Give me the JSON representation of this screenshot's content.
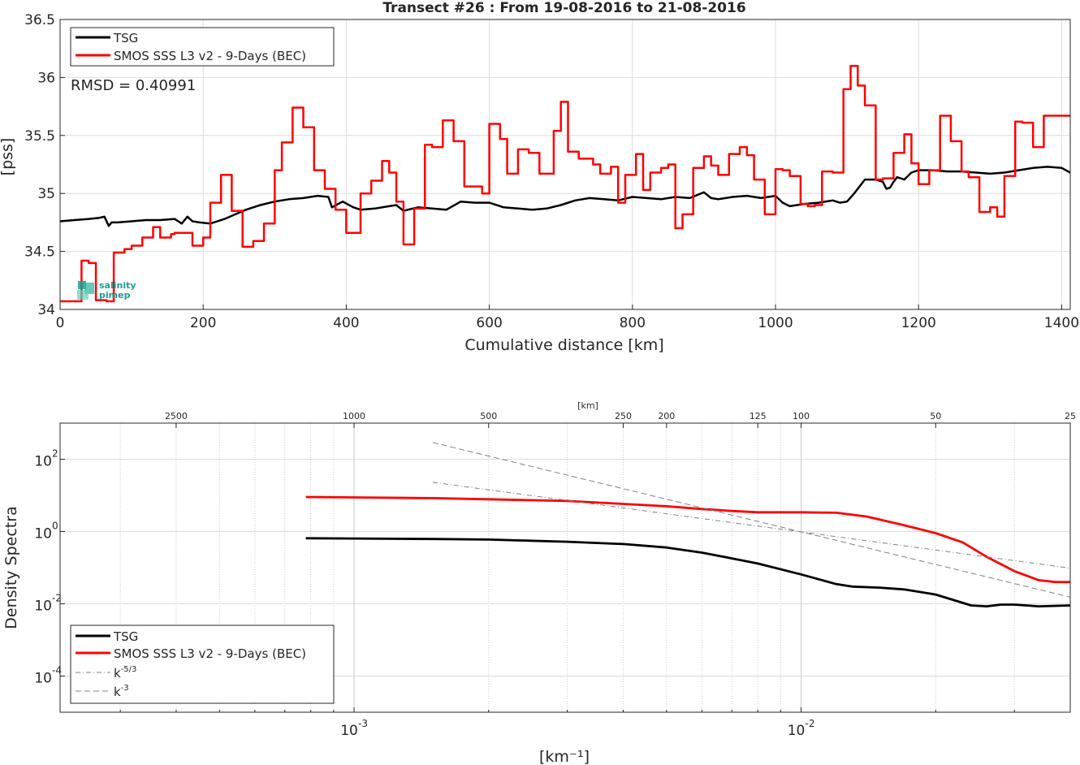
{
  "figure": {
    "title": "Transect #26 : From 19-08-2016 to 21-08-2016"
  },
  "colors": {
    "tsg": "#000000",
    "smos": "#ff0000",
    "ref": "#808080",
    "grid": "#d9d9d9",
    "logo": "#1a9e8f"
  },
  "logo": {
    "line1": "salinity",
    "line2": "pimep"
  },
  "chart_data": [
    {
      "type": "line",
      "title": "Transect #26 : From 19-08-2016 to 21-08-2016",
      "xlabel": "Cumulative distance [km]",
      "ylabel": "[pss]",
      "xlim": [
        0,
        1412
      ],
      "ylim": [
        34,
        36.5
      ],
      "xticks": [
        0,
        200,
        400,
        600,
        800,
        1000,
        1200,
        1400
      ],
      "yticks": [
        34,
        34.5,
        35,
        35.5,
        36,
        36.5
      ],
      "ytick_labels": [
        "34",
        "34.5",
        "35",
        "35.5",
        "36",
        "36.5"
      ],
      "grid": true,
      "legend_position": "top-left",
      "annotation": "RMSD = 0.40991",
      "series": [
        {
          "name": "TSG",
          "color": "#000000",
          "x": [
            0,
            20,
            40,
            55,
            62,
            68,
            72,
            80,
            100,
            120,
            140,
            160,
            170,
            178,
            185,
            195,
            210,
            230,
            245,
            260,
            280,
            300,
            320,
            340,
            360,
            375,
            380,
            395,
            410,
            420,
            440,
            460,
            470,
            480,
            500,
            520,
            540,
            560,
            580,
            600,
            620,
            640,
            660,
            680,
            700,
            720,
            740,
            760,
            780,
            800,
            820,
            840,
            860,
            880,
            900,
            910,
            920,
            940,
            960,
            980,
            1000,
            1010,
            1020,
            1040,
            1060,
            1080,
            1090,
            1100,
            1110,
            1125,
            1140,
            1150,
            1155,
            1160,
            1165,
            1170,
            1180,
            1190,
            1200,
            1220,
            1240,
            1260,
            1280,
            1300,
            1320,
            1340,
            1360,
            1380,
            1400,
            1412
          ],
          "y": [
            34.76,
            34.77,
            34.78,
            34.79,
            34.8,
            34.72,
            34.75,
            34.75,
            34.76,
            34.77,
            34.77,
            34.78,
            34.74,
            34.8,
            34.76,
            34.75,
            34.74,
            34.78,
            34.82,
            34.86,
            34.9,
            34.93,
            34.95,
            34.96,
            34.98,
            34.97,
            34.88,
            34.93,
            34.88,
            34.86,
            34.87,
            34.89,
            34.9,
            34.85,
            34.88,
            34.87,
            34.86,
            34.93,
            34.92,
            34.92,
            34.88,
            34.87,
            34.86,
            34.87,
            34.9,
            34.94,
            34.96,
            34.95,
            34.94,
            34.97,
            34.96,
            34.95,
            34.97,
            34.96,
            35.01,
            34.96,
            34.95,
            34.97,
            34.98,
            34.96,
            34.98,
            34.92,
            34.89,
            34.91,
            34.92,
            34.94,
            34.92,
            34.93,
            35.0,
            35.12,
            35.12,
            35.1,
            35.04,
            35.05,
            35.1,
            35.14,
            35.12,
            35.18,
            35.2,
            35.2,
            35.19,
            35.19,
            35.18,
            35.17,
            35.18,
            35.2,
            35.22,
            35.23,
            35.22,
            35.18
          ]
        },
        {
          "name": "SMOS SSS L3 v2 - 9-Days (BEC)",
          "color": "#ff0000",
          "step": true,
          "x": [
            0,
            10,
            20,
            30,
            40,
            50,
            58,
            65,
            75,
            90,
            100,
            115,
            130,
            140,
            155,
            160,
            175,
            185,
            200,
            210,
            225,
            240,
            255,
            270,
            285,
            300,
            310,
            325,
            340,
            355,
            370,
            385,
            400,
            410,
            420,
            435,
            450,
            460,
            470,
            480,
            495,
            510,
            520,
            535,
            550,
            565,
            580,
            590,
            600,
            615,
            625,
            640,
            655,
            670,
            690,
            700,
            710,
            725,
            735,
            745,
            755,
            770,
            780,
            790,
            805,
            815,
            825,
            840,
            850,
            860,
            870,
            885,
            900,
            910,
            920,
            935,
            950,
            960,
            970,
            985,
            1000,
            1010,
            1020,
            1035,
            1045,
            1055,
            1065,
            1080,
            1095,
            1105,
            1115,
            1125,
            1140,
            1150,
            1165,
            1180,
            1190,
            1200,
            1215,
            1230,
            1245,
            1260,
            1270,
            1285,
            1300,
            1310,
            1320,
            1335,
            1345,
            1360,
            1375,
            1385,
            1400,
            1412
          ],
          "y": [
            34.07,
            34.07,
            34.07,
            34.42,
            34.4,
            34.08,
            34.08,
            34.07,
            34.49,
            34.52,
            34.55,
            34.62,
            34.71,
            34.62,
            34.65,
            34.66,
            34.66,
            34.55,
            34.62,
            34.92,
            35.16,
            34.85,
            34.54,
            34.59,
            34.74,
            35.2,
            35.44,
            35.74,
            35.57,
            35.2,
            35.04,
            34.86,
            34.66,
            34.66,
            35.0,
            35.11,
            35.28,
            35.18,
            34.93,
            34.56,
            34.87,
            35.42,
            35.4,
            35.63,
            35.45,
            35.06,
            35.06,
            35.0,
            35.6,
            35.47,
            35.17,
            35.38,
            35.35,
            35.17,
            35.54,
            35.79,
            35.36,
            35.3,
            35.3,
            35.25,
            35.17,
            35.23,
            34.92,
            35.16,
            35.34,
            35.03,
            35.18,
            35.22,
            35.25,
            34.7,
            34.82,
            35.22,
            35.32,
            35.24,
            35.16,
            35.34,
            35.4,
            35.33,
            35.12,
            34.82,
            35.21,
            35.2,
            35.15,
            34.91,
            34.89,
            34.9,
            35.19,
            35.18,
            35.9,
            36.1,
            35.93,
            35.76,
            35.12,
            35.13,
            35.35,
            35.51,
            35.26,
            35.08,
            35.2,
            35.67,
            35.45,
            35.19,
            35.14,
            34.84,
            34.88,
            34.8,
            35.15,
            35.62,
            35.61,
            35.4,
            35.67,
            35.67,
            35.67,
            35.67
          ]
        }
      ]
    },
    {
      "type": "line",
      "title": "",
      "xlabel": "[km⁻¹]",
      "ylabel": "Density Spectra",
      "xscale": "log",
      "yscale": "log",
      "xlim": [
        0.00022,
        0.04
      ],
      "ylim": [
        1e-05,
        1000
      ],
      "xticks": [
        0.001,
        0.01
      ],
      "xtick_labels": [
        "10",
        "10"
      ],
      "xtick_exponents": [
        "-3",
        "-2"
      ],
      "yticks": [
        0.0001,
        0.01,
        1,
        100
      ],
      "ytick_labels": [
        "10",
        "10",
        "10",
        "10"
      ],
      "ytick_exponents": [
        "-4",
        "-2",
        "0",
        "2"
      ],
      "top_axis_label": "[km]",
      "top_ticks_km": [
        2500,
        1000,
        500,
        250,
        200,
        125,
        100,
        50,
        25
      ],
      "grid": true,
      "legend_position": "bottom-left",
      "series": [
        {
          "name": "TSG",
          "color": "#000000",
          "x": [
            0.00078,
            0.001,
            0.0015,
            0.002,
            0.003,
            0.004,
            0.005,
            0.006,
            0.007,
            0.008,
            0.01,
            0.012,
            0.013,
            0.015,
            0.017,
            0.02,
            0.024,
            0.026,
            0.028,
            0.03,
            0.034,
            0.04
          ],
          "y": [
            0.65,
            0.64,
            0.62,
            0.6,
            0.52,
            0.45,
            0.36,
            0.26,
            0.18,
            0.13,
            0.065,
            0.035,
            0.03,
            0.028,
            0.025,
            0.018,
            0.009,
            0.0085,
            0.0095,
            0.0095,
            0.0085,
            0.009
          ]
        },
        {
          "name": "SMOS SSS L3 v2 - 9-Days (BEC)",
          "color": "#ff0000",
          "x": [
            0.00078,
            0.001,
            0.0015,
            0.002,
            0.003,
            0.004,
            0.005,
            0.006,
            0.007,
            0.008,
            0.01,
            0.012,
            0.014,
            0.017,
            0.02,
            0.023,
            0.026,
            0.03,
            0.034,
            0.037,
            0.04
          ],
          "y": [
            9.0,
            8.8,
            8.4,
            7.8,
            7.0,
            5.8,
            5.0,
            4.2,
            3.7,
            3.4,
            3.4,
            3.3,
            2.6,
            1.5,
            0.9,
            0.5,
            0.2,
            0.08,
            0.045,
            0.04,
            0.04
          ]
        },
        {
          "name": "k⁻⁵ᐟ³",
          "style": "dashdot",
          "color": "#808080",
          "x": [
            0.0015,
            0.04
          ],
          "y": [
            23,
            0.097
          ]
        },
        {
          "name": "k⁻³",
          "style": "dash",
          "color": "#808080",
          "x": [
            0.0015,
            0.04
          ],
          "y": [
            290,
            0.0153
          ]
        }
      ]
    }
  ],
  "legend_top": [
    "TSG",
    "SMOS SSS L3 v2 - 9-Days (BEC)"
  ],
  "legend_bottom": [
    "TSG",
    "SMOS SSS L3 v2 - 9-Days (BEC)",
    "k",
    "k"
  ],
  "legend_bottom_exponents": [
    "",
    "",
    "-5/3",
    "-3"
  ]
}
